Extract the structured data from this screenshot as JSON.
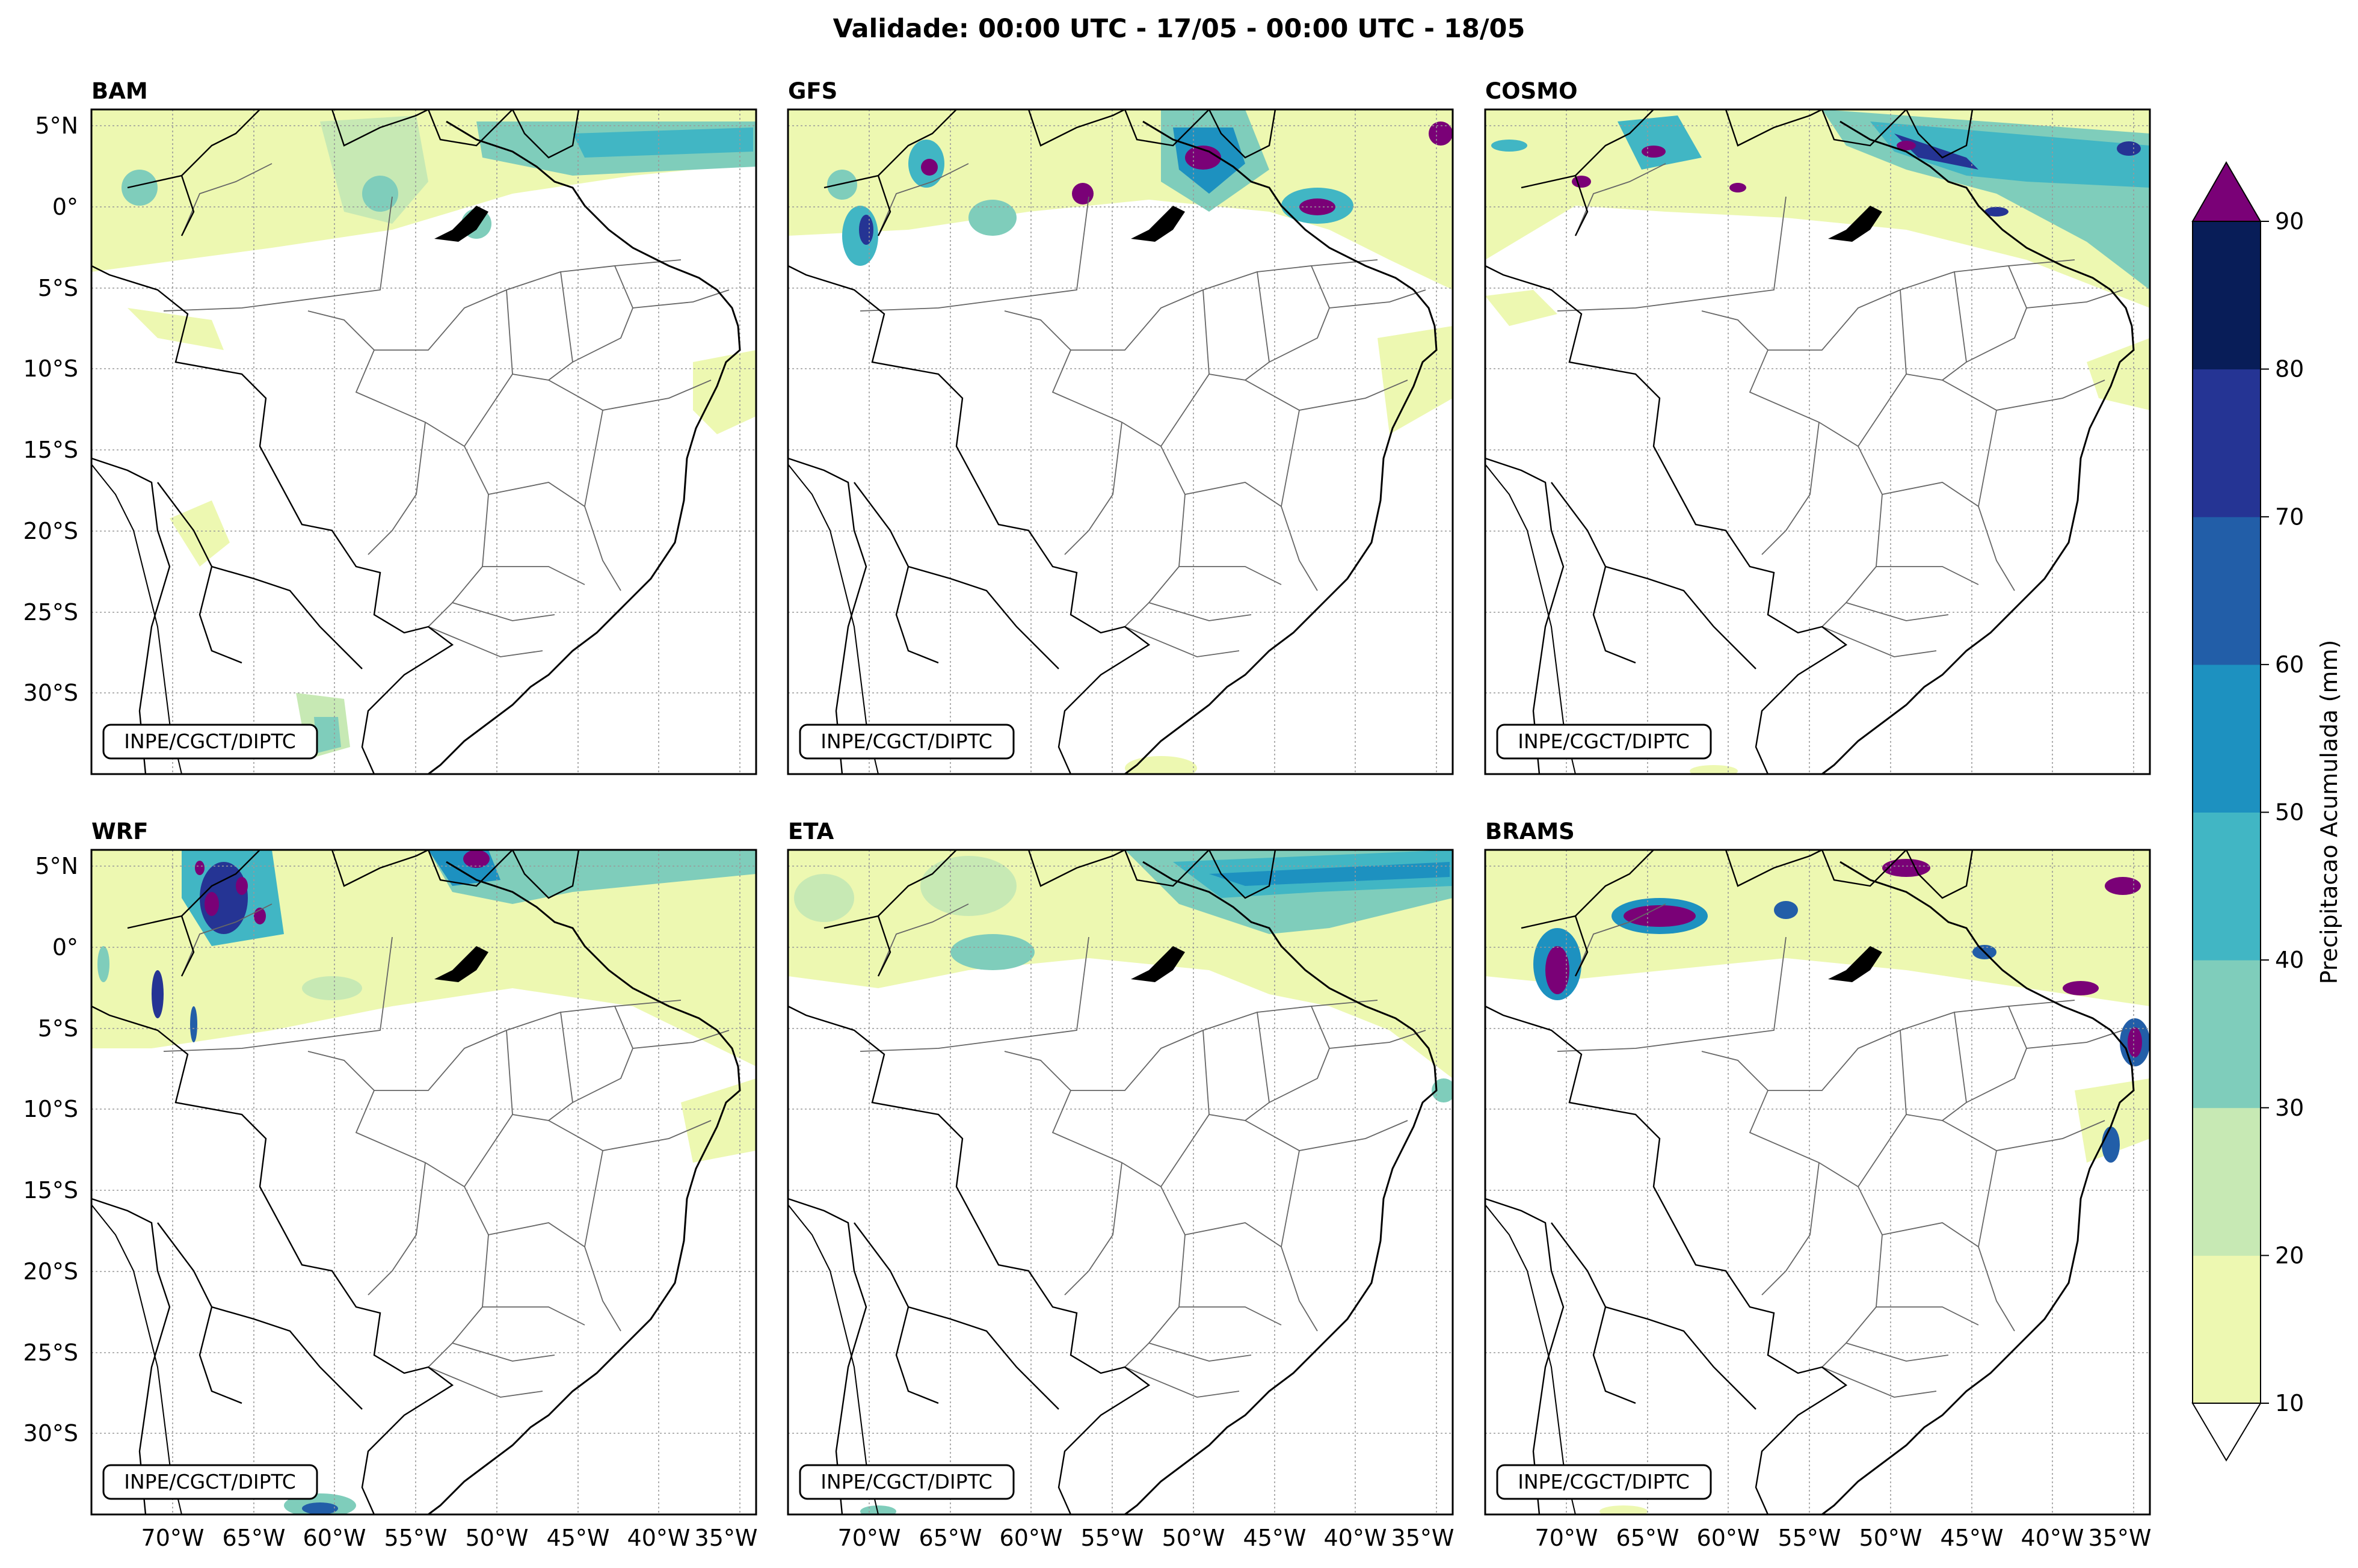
{
  "figure": {
    "title": "Validade: 00:00 UTC - 17/05 - 00:00 UTC - 18/05",
    "credit": "INPE/CGCT/DIPTC"
  },
  "panels": [
    {
      "model": "BAM"
    },
    {
      "model": "GFS"
    },
    {
      "model": "COSMO"
    },
    {
      "model": "WRF"
    },
    {
      "model": "ETA"
    },
    {
      "model": "BRAMS"
    }
  ],
  "axes": {
    "lat_labels": [
      "5°N",
      "0°",
      "5°S",
      "10°S",
      "15°S",
      "20°S",
      "25°S",
      "30°S"
    ],
    "lon_labels": [
      "70°W",
      "65°W",
      "60°W",
      "55°W",
      "50°W",
      "45°W",
      "40°W",
      "35°W"
    ]
  },
  "colorbar": {
    "label": "Precipitacao Acumulada (mm)",
    "ticks": [
      "10",
      "20",
      "30",
      "40",
      "50",
      "60",
      "70",
      "80",
      "90"
    ],
    "colors": [
      "#edf8b1",
      "#c7e9b4",
      "#7fcdbb",
      "#41b6c4",
      "#1d91c0",
      "#225ea8",
      "#253494",
      "#081d58"
    ],
    "over_color": "#7a0177",
    "under_color": "#ffffff"
  },
  "chart_data": {
    "type": "heatmap",
    "title": "Validade: 00:00 UTC - 17/05 - 00:00 UTC - 18/05",
    "variable": "Precipitacao Acumulada (mm)",
    "levels": [
      10,
      20,
      30,
      40,
      50,
      60,
      70,
      80,
      90
    ],
    "extend": "both",
    "lon_range": [
      -75,
      -34
    ],
    "lat_range": [
      -35,
      6
    ],
    "grid": true,
    "colorbar_placement": "right",
    "qualitative_fields": [
      {
        "model": "BAM",
        "max_level": 50,
        "areas": [
          "north coast 0-5°N, 30-50 mm",
          "Amazon north 10-30 mm",
          "extreme south 20-40 mm"
        ]
      },
      {
        "model": "GFS",
        "max_level": 90,
        "areas": [
          "Amapá/Pará coast >90 mm",
          "northwest Amazon cells 50->90 mm"
        ]
      },
      {
        "model": "COSMO",
        "max_level": 90,
        "areas": [
          "band from Amapá to NE Atlantic 40-70 mm",
          "scattered >90 mm cores north"
        ]
      },
      {
        "model": "WRF",
        "max_level": 90,
        "areas": [
          "NW Amazon many >90 mm cells",
          "Amapá coast 50-80 mm"
        ]
      },
      {
        "model": "ETA",
        "max_level": 60,
        "areas": [
          "north Atlantic coast band 30-60 mm",
          "NW Amazon 10-40 mm"
        ]
      },
      {
        "model": "BRAMS",
        "max_level": 90,
        "areas": [
          "scattered >90 mm cores north Amazon",
          "NE coast cells 50->90 mm"
        ]
      }
    ]
  }
}
